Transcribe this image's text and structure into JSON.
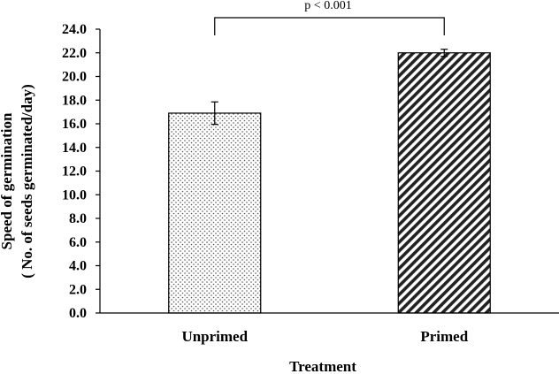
{
  "chart_data": {
    "type": "bar",
    "categories": [
      "Unprimed",
      "Primed"
    ],
    "values": [
      16.9,
      22.0
    ],
    "errors": [
      0.95,
      0.3
    ],
    "bar_patterns": [
      "dots",
      "diagonal-stripes"
    ],
    "xlabel": "Treatment",
    "ylabel_line1": "Speed of germination",
    "ylabel_line2": "( No. of seeds germinated/day)",
    "ylim": [
      0,
      24
    ],
    "yticks": [
      "0.0",
      "2.0",
      "4.0",
      "6.0",
      "8.0",
      "10.0",
      "12.0",
      "14.0",
      "16.0",
      "18.0",
      "20.0",
      "22.0",
      "24.0"
    ],
    "significance": "p < 0.001",
    "grid": false
  }
}
